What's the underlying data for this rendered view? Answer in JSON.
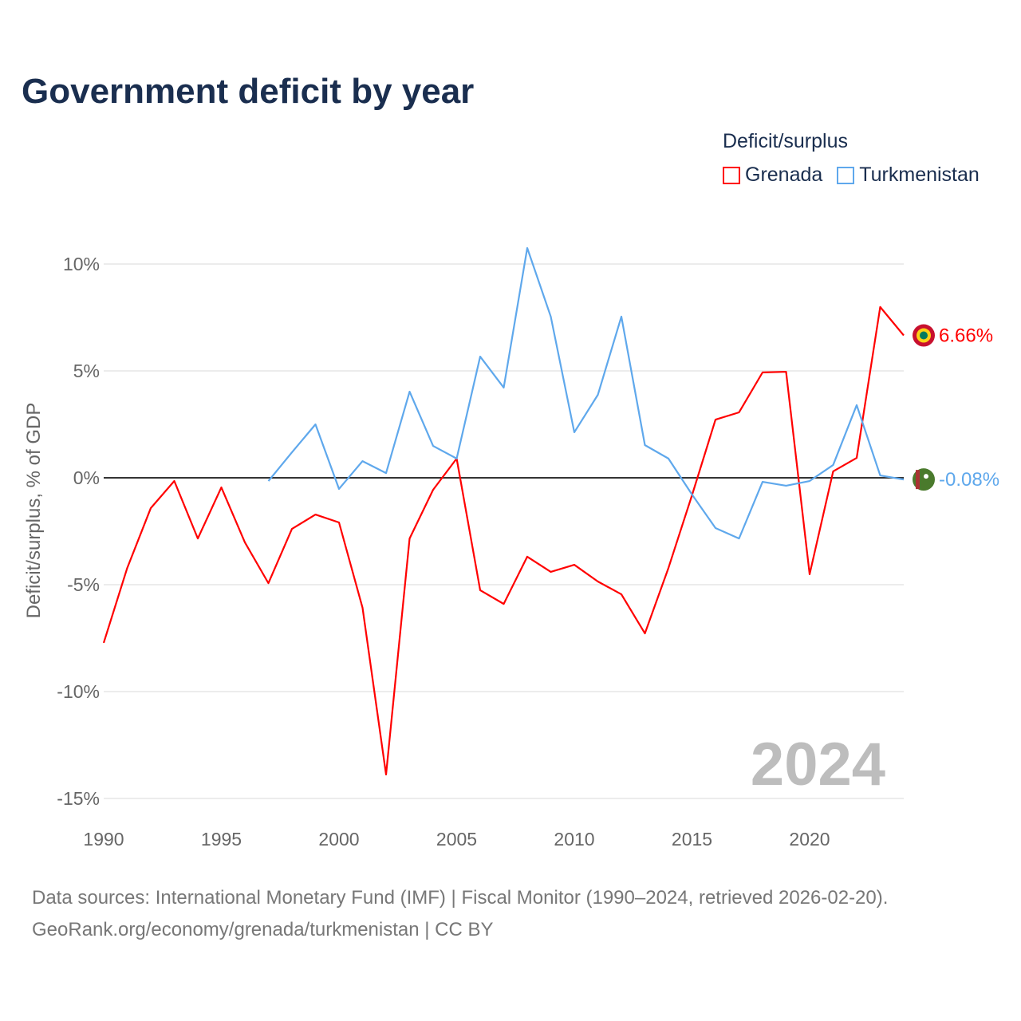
{
  "title": "Government deficit by year",
  "legend": {
    "title": "Deficit/surplus",
    "items": [
      {
        "name": "Grenada",
        "color": "#ff0000"
      },
      {
        "name": "Turkmenistan",
        "color": "#5fa8ec"
      }
    ]
  },
  "watermark_year": "2024",
  "source": {
    "line1": "Data sources: International Monetary Fund (IMF) | Fiscal Monitor (1990–2024, retrieved 2026-02-20).",
    "line2": "GeoRank.org/economy/grenada/turkmenistan | CC BY"
  },
  "chart_data": {
    "type": "line",
    "title": "Government deficit by year",
    "xlabel": "",
    "ylabel": "Deficit/surplus, % of GDP",
    "xlim": [
      1990,
      2024
    ],
    "ylim": [
      -15,
      10.9
    ],
    "x_ticks": [
      1990,
      1995,
      2000,
      2005,
      2010,
      2015,
      2020
    ],
    "y_ticks": [
      {
        "v": 10,
        "label": "10%"
      },
      {
        "v": 5,
        "label": "5%"
      },
      {
        "v": 0,
        "label": "0%"
      },
      {
        "v": -5,
        "label": "-5%"
      },
      {
        "v": -10,
        "label": "-10%"
      },
      {
        "v": -15,
        "label": "-15%"
      }
    ],
    "grid": true,
    "legend_position": "top-right",
    "series": [
      {
        "name": "Grenada",
        "color": "#ff0000",
        "end_label": "6.66%",
        "x": [
          1990,
          1991,
          1992,
          1993,
          1994,
          1995,
          1996,
          1997,
          1998,
          1999,
          2000,
          2001,
          2002,
          2003,
          2004,
          2005,
          2006,
          2007,
          2008,
          2009,
          2010,
          2011,
          2012,
          2013,
          2014,
          2015,
          2016,
          2017,
          2018,
          2019,
          2020,
          2021,
          2022,
          2023,
          2024
        ],
        "values": [
          -7.72,
          -4.22,
          -1.42,
          -0.15,
          -2.84,
          -0.45,
          -3.02,
          -4.93,
          -2.39,
          -1.72,
          -2.09,
          -6.08,
          -13.88,
          -2.84,
          -0.56,
          0.9,
          -5.26,
          -5.9,
          -3.69,
          -4.4,
          -4.07,
          -4.85,
          -5.45,
          -7.28,
          -4.22,
          -0.82,
          2.72,
          3.06,
          4.93,
          4.96,
          -4.51,
          0.3,
          0.93,
          7.99,
          6.66
        ]
      },
      {
        "name": "Turkmenistan",
        "color": "#5fa8ec",
        "end_label": "-0.08%",
        "x": [
          1997,
          1998,
          1999,
          2000,
          2001,
          2002,
          2003,
          2004,
          2005,
          2006,
          2007,
          2008,
          2009,
          2010,
          2011,
          2012,
          2013,
          2014,
          2015,
          2016,
          2017,
          2018,
          2019,
          2020,
          2021,
          2022,
          2023,
          2024
        ],
        "values": [
          -0.15,
          1.19,
          2.5,
          -0.52,
          0.78,
          0.22,
          4.03,
          1.49,
          0.9,
          5.67,
          4.22,
          10.75,
          7.54,
          2.13,
          3.88,
          7.54,
          1.53,
          0.9,
          -0.78,
          -2.35,
          -2.84,
          -0.19,
          -0.37,
          -0.15,
          0.6,
          3.4,
          0.11,
          -0.08
        ]
      }
    ]
  }
}
